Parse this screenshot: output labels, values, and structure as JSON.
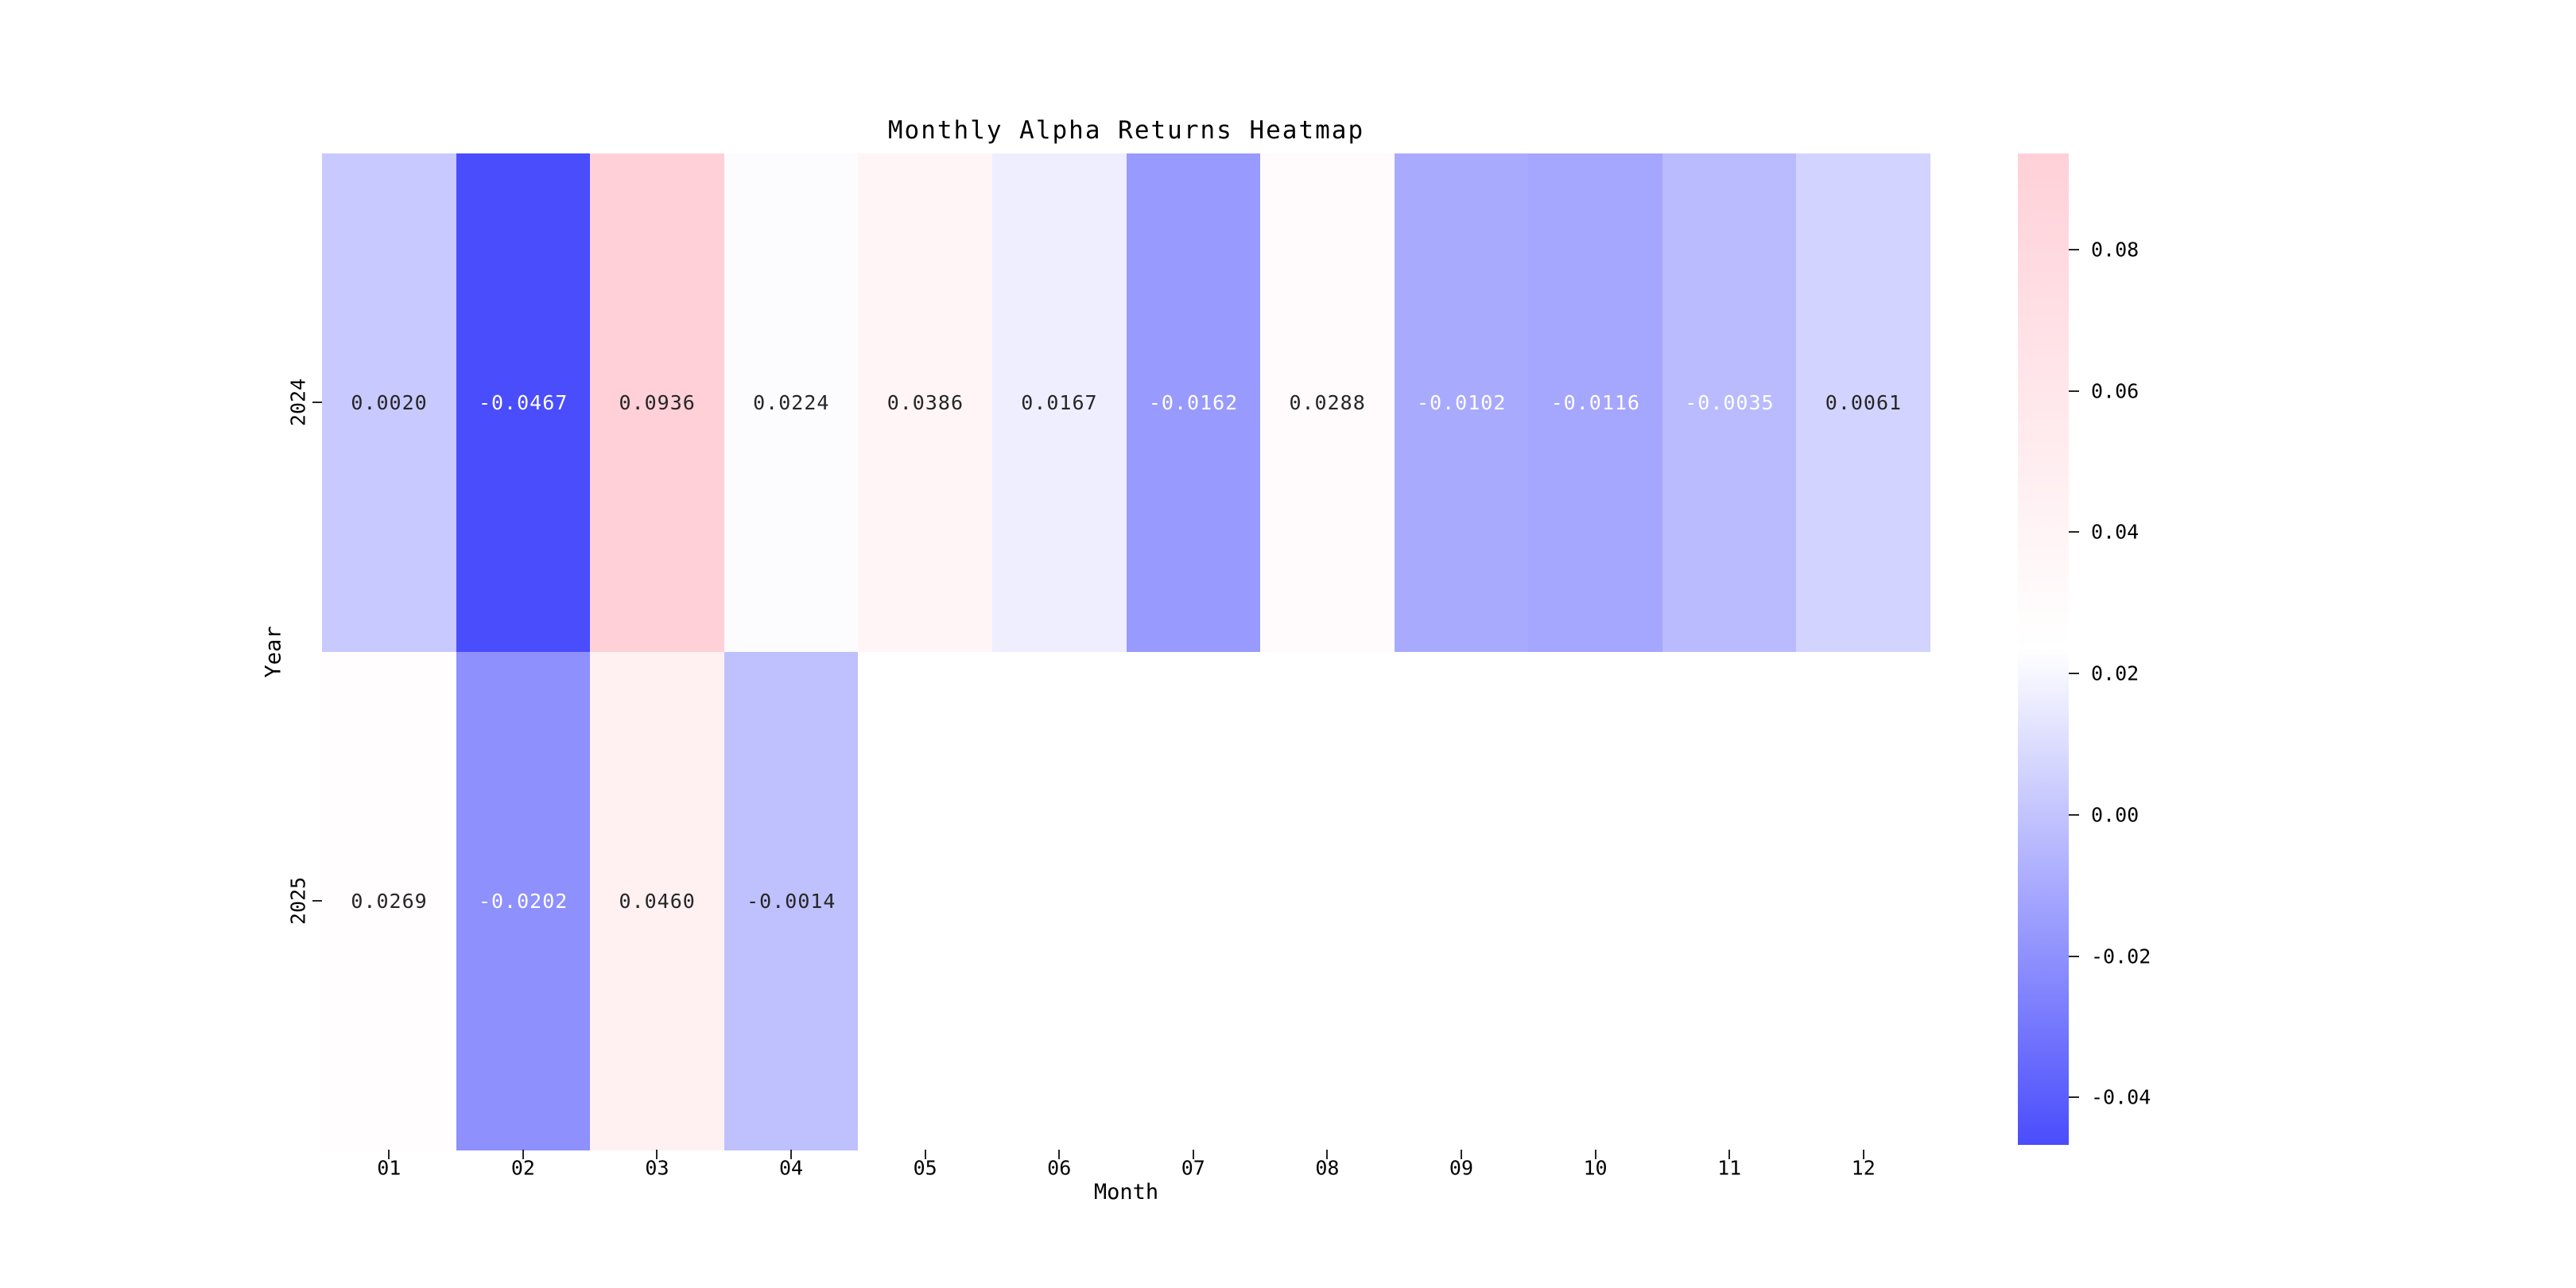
{
  "chart_data": {
    "type": "heatmap",
    "title": "Monthly Alpha Returns Heatmap",
    "xlabel": "Month",
    "ylabel": "Year",
    "x_categories": [
      "01",
      "02",
      "03",
      "04",
      "05",
      "06",
      "07",
      "08",
      "09",
      "10",
      "11",
      "12"
    ],
    "y_categories": [
      "2024",
      "2025"
    ],
    "rows": [
      {
        "year": "2024",
        "values": [
          0.002,
          -0.0467,
          0.0936,
          0.0224,
          0.0386,
          0.0167,
          -0.0162,
          0.0288,
          -0.0102,
          -0.0116,
          -0.0035,
          0.0061
        ],
        "labels": [
          "0.0020",
          "-0.0467",
          "0.0936",
          "0.0224",
          "0.0386",
          "0.0167",
          "-0.0162",
          "0.0288",
          "-0.0102",
          "-0.0116",
          "-0.0035",
          "0.0061"
        ],
        "label_colors": [
          "dark",
          "white",
          "dark",
          "dark",
          "dark",
          "dark",
          "white",
          "dark",
          "white",
          "white",
          "white",
          "dark"
        ]
      },
      {
        "year": "2025",
        "values": [
          0.0269,
          -0.0202,
          0.046,
          -0.0014,
          null,
          null,
          null,
          null,
          null,
          null,
          null,
          null
        ],
        "labels": [
          "0.0269",
          "-0.0202",
          "0.0460",
          "-0.0014",
          "",
          "",
          "",
          "",
          "",
          "",
          "",
          ""
        ],
        "label_colors": [
          "dark",
          "white",
          "dark",
          "dark",
          "",
          "",
          "",
          "",
          "",
          "",
          "",
          ""
        ]
      }
    ],
    "vmin": -0.0467,
    "vmax": 0.0936,
    "grid": false,
    "colormap": {
      "low": "#4A4DFC",
      "mid": "#FFFFFF",
      "high": "#FFD0D8"
    },
    "annotation_colors": {
      "dark": "#262626",
      "white": "#FFFFFF"
    },
    "missing_cell_color": "#FFFFFF",
    "colorbar": {
      "position": "right",
      "ticks": [
        {
          "label": "0.08",
          "value": 0.08
        },
        {
          "label": "0.06",
          "value": 0.06
        },
        {
          "label": "0.04",
          "value": 0.04
        },
        {
          "label": "0.02",
          "value": 0.02
        },
        {
          "label": "0.00",
          "value": 0.0
        },
        {
          "label": "-0.02",
          "value": -0.02
        },
        {
          "label": "-0.04",
          "value": -0.04
        }
      ]
    }
  }
}
